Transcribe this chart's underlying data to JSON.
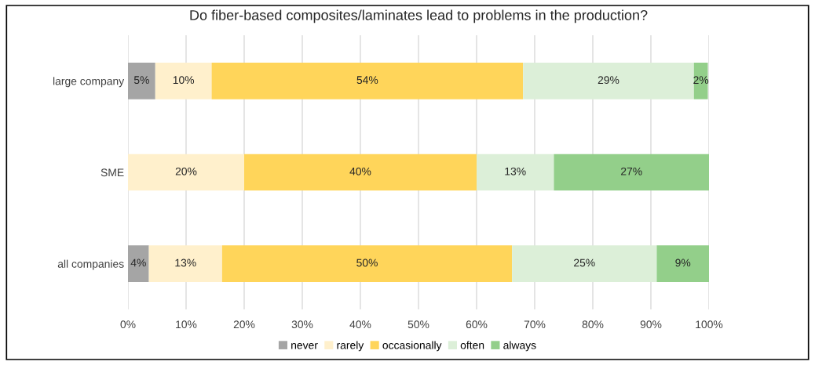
{
  "chart_data": {
    "type": "bar",
    "orientation": "horizontal",
    "stacked": true,
    "title": "Do fiber-based composites/laminates lead to problems in the production?",
    "categories": [
      "large company",
      "SME",
      "all companies"
    ],
    "series": [
      {
        "name": "never",
        "color": "#a5a5a5",
        "values": [
          4.7,
          0,
          3.6
        ],
        "value_labels": [
          "5%",
          null,
          "4%"
        ]
      },
      {
        "name": "rarely",
        "color": "#fff0cc",
        "values": [
          9.7,
          20,
          12.6
        ],
        "value_labels": [
          "10%",
          "20%",
          "13%"
        ]
      },
      {
        "name": "occasionally",
        "color": "#ffd55a",
        "values": [
          53.6,
          40,
          49.9
        ],
        "value_labels": [
          "54%",
          "40%",
          "50%"
        ]
      },
      {
        "name": "often",
        "color": "#dcefd8",
        "values": [
          29.4,
          13.3,
          24.9
        ],
        "value_labels": [
          "29%",
          "13%",
          "25%"
        ]
      },
      {
        "name": "always",
        "color": "#93cf8a",
        "values": [
          2.4,
          26.7,
          9
        ],
        "value_labels": [
          "2%",
          "27%",
          "9%"
        ]
      }
    ],
    "xlim": [
      0,
      100
    ],
    "xticks": [
      {
        "value": 0,
        "label": "0%"
      },
      {
        "value": 10,
        "label": "10%"
      },
      {
        "value": 20,
        "label": "20%"
      },
      {
        "value": 30,
        "label": "30%"
      },
      {
        "value": 40,
        "label": "40%"
      },
      {
        "value": 50,
        "label": "50%"
      },
      {
        "value": 60,
        "label": "60%"
      },
      {
        "value": 70,
        "label": "70%"
      },
      {
        "value": 80,
        "label": "80%"
      },
      {
        "value": 90,
        "label": "90%"
      },
      {
        "value": 100,
        "label": "100%"
      }
    ],
    "grid": "x",
    "legend": "bottom"
  }
}
